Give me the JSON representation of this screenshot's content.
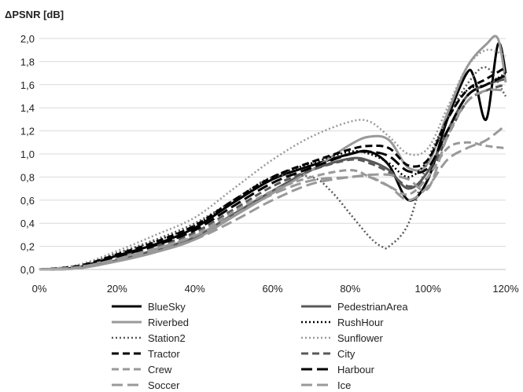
{
  "chart_data": {
    "type": "line",
    "title": "",
    "ylabel": "ΔPSNR [dB]",
    "xlabel": "",
    "xlim": [
      0,
      120
    ],
    "ylim": [
      0,
      2.0
    ],
    "x_ticks": [
      0,
      20,
      40,
      60,
      80,
      100,
      120
    ],
    "x_tick_labels": [
      "0%",
      "20%",
      "40%",
      "60%",
      "80%",
      "100%",
      "120%"
    ],
    "y_ticks": [
      0,
      0.2,
      0.4,
      0.6,
      0.8,
      1.0,
      1.2,
      1.4,
      1.6,
      1.8,
      2.0
    ],
    "y_tick_labels": [
      "0,0",
      "0,2",
      "0,4",
      "0,6",
      "0,8",
      "1,0",
      "1,2",
      "1,4",
      "1,6",
      "1,8",
      "2,0"
    ],
    "grid": "horizontal",
    "legend_position": "bottom",
    "series": [
      {
        "name": "BlueSky",
        "color": "#000000",
        "dash": "solid",
        "width": 3,
        "x": [
          0,
          10,
          20,
          30,
          40,
          50,
          60,
          70,
          80,
          85,
          90,
          95,
          100,
          105,
          110,
          112,
          115,
          118,
          120
        ],
        "y": [
          0,
          0.02,
          0.12,
          0.22,
          0.36,
          0.58,
          0.78,
          0.9,
          1.0,
          1.02,
          0.9,
          0.6,
          0.78,
          1.3,
          1.7,
          1.65,
          1.3,
          1.95,
          1.7
        ]
      },
      {
        "name": "PedestrianArea",
        "color": "#595959",
        "dash": "solid",
        "width": 3,
        "x": [
          0,
          10,
          20,
          30,
          40,
          50,
          60,
          70,
          80,
          85,
          90,
          95,
          100,
          105,
          110,
          115,
          120
        ],
        "y": [
          0,
          0.01,
          0.08,
          0.17,
          0.28,
          0.48,
          0.68,
          0.86,
          0.96,
          0.94,
          0.86,
          0.7,
          0.85,
          1.2,
          1.5,
          1.6,
          1.65
        ]
      },
      {
        "name": "Riverbed",
        "color": "#999999",
        "dash": "solid",
        "width": 3,
        "x": [
          0,
          10,
          20,
          30,
          40,
          50,
          60,
          70,
          80,
          85,
          90,
          95,
          100,
          105,
          110,
          115,
          118,
          120
        ],
        "y": [
          0,
          0.01,
          0.07,
          0.15,
          0.26,
          0.46,
          0.66,
          0.86,
          1.08,
          1.15,
          1.12,
          0.88,
          0.92,
          1.35,
          1.75,
          1.95,
          2.0,
          1.62
        ]
      },
      {
        "name": "RushHour",
        "color": "#000000",
        "dash": "2 3",
        "width": 2.5,
        "x": [
          0,
          10,
          20,
          30,
          40,
          50,
          60,
          70,
          80,
          85,
          90,
          95,
          100,
          105,
          110,
          115,
          120
        ],
        "y": [
          0,
          0.03,
          0.14,
          0.25,
          0.38,
          0.6,
          0.8,
          0.92,
          1.02,
          1.0,
          0.92,
          0.8,
          0.95,
          1.3,
          1.55,
          1.6,
          1.7
        ]
      },
      {
        "name": "Station2",
        "color": "#595959",
        "dash": "2 3",
        "width": 2.5,
        "x": [
          0,
          10,
          20,
          30,
          40,
          50,
          60,
          70,
          75,
          80,
          85,
          88,
          90,
          95,
          100,
          105,
          110,
          115,
          120
        ],
        "y": [
          0,
          0.03,
          0.14,
          0.26,
          0.4,
          0.6,
          0.8,
          0.8,
          0.68,
          0.48,
          0.28,
          0.2,
          0.2,
          0.4,
          0.95,
          1.3,
          1.6,
          1.75,
          1.5
        ]
      },
      {
        "name": "Sunflower",
        "color": "#999999",
        "dash": "2 3",
        "width": 2.5,
        "x": [
          0,
          10,
          20,
          30,
          40,
          50,
          60,
          70,
          80,
          85,
          90,
          95,
          100,
          105,
          110,
          115,
          120
        ],
        "y": [
          0,
          0.04,
          0.16,
          0.3,
          0.45,
          0.7,
          0.95,
          1.15,
          1.28,
          1.28,
          1.15,
          1.0,
          1.05,
          1.4,
          1.75,
          1.9,
          1.85
        ]
      },
      {
        "name": "Tractor",
        "color": "#000000",
        "dash": "9 5",
        "width": 3,
        "x": [
          0,
          10,
          20,
          30,
          40,
          50,
          60,
          70,
          80,
          85,
          90,
          95,
          100,
          105,
          110,
          115,
          120
        ],
        "y": [
          0,
          0.03,
          0.13,
          0.24,
          0.38,
          0.6,
          0.8,
          0.93,
          1.04,
          1.07,
          1.05,
          0.9,
          0.95,
          1.3,
          1.55,
          1.65,
          1.75
        ]
      },
      {
        "name": "City",
        "color": "#595959",
        "dash": "9 5",
        "width": 3,
        "x": [
          0,
          10,
          20,
          30,
          40,
          50,
          60,
          70,
          80,
          85,
          90,
          95,
          100,
          105,
          110,
          115,
          120
        ],
        "y": [
          0,
          0.02,
          0.1,
          0.2,
          0.32,
          0.52,
          0.72,
          0.86,
          0.95,
          0.92,
          0.84,
          0.72,
          0.8,
          1.15,
          1.45,
          1.55,
          1.6
        ]
      },
      {
        "name": "Crew",
        "color": "#999999",
        "dash": "9 5",
        "width": 3,
        "x": [
          0,
          10,
          20,
          30,
          40,
          50,
          60,
          70,
          80,
          85,
          90,
          95,
          100,
          105,
          110,
          115,
          120
        ],
        "y": [
          0,
          0.02,
          0.1,
          0.18,
          0.3,
          0.5,
          0.68,
          0.8,
          0.86,
          0.8,
          0.72,
          0.65,
          0.8,
          1.05,
          1.1,
          1.07,
          1.05
        ]
      },
      {
        "name": "Harbour",
        "color": "#000000",
        "dash": "14 6",
        "width": 3,
        "x": [
          0,
          10,
          20,
          30,
          40,
          50,
          60,
          70,
          80,
          85,
          90,
          95,
          100,
          105,
          110,
          115,
          120
        ],
        "y": [
          0,
          0.02,
          0.11,
          0.21,
          0.34,
          0.55,
          0.75,
          0.88,
          1.0,
          1.02,
          0.98,
          0.85,
          0.88,
          1.2,
          1.5,
          1.6,
          1.68
        ]
      },
      {
        "name": "Soccer",
        "color": "#999999",
        "dash": "14 6",
        "width": 3,
        "x": [
          0,
          10,
          20,
          30,
          40,
          50,
          60,
          70,
          80,
          85,
          90,
          95,
          100,
          105,
          110,
          115,
          120
        ],
        "y": [
          0,
          0.01,
          0.08,
          0.16,
          0.26,
          0.42,
          0.6,
          0.74,
          0.8,
          0.8,
          0.72,
          0.6,
          0.72,
          0.95,
          1.05,
          1.12,
          1.25
        ]
      },
      {
        "name": "Ice",
        "color": "#999999",
        "dash": "14 6",
        "width": 3,
        "x": [
          0,
          10,
          20,
          30,
          40,
          50,
          60,
          70,
          80,
          85,
          90,
          95,
          100,
          105,
          110,
          115,
          120
        ],
        "y": [
          0,
          0.02,
          0.09,
          0.18,
          0.29,
          0.47,
          0.65,
          0.77,
          0.8,
          0.82,
          0.82,
          0.78,
          0.7,
          1.15,
          1.45,
          1.55,
          1.55
        ]
      }
    ]
  }
}
